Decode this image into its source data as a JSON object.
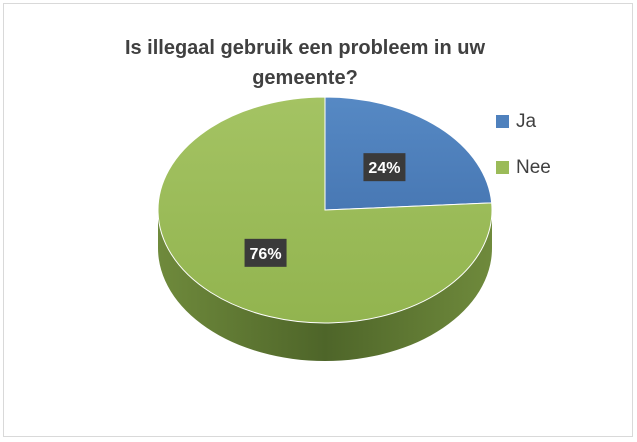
{
  "chart_data": {
    "type": "pie",
    "style": "3d",
    "title": "Is illegaal gebruik een probleem in uw gemeente?",
    "categories": [
      "Ja",
      "Nee"
    ],
    "values": [
      24,
      76
    ],
    "data_labels": [
      "24%",
      "76%"
    ],
    "colors": [
      "#4f81bd",
      "#9bbb59"
    ],
    "legend_position": "right"
  }
}
